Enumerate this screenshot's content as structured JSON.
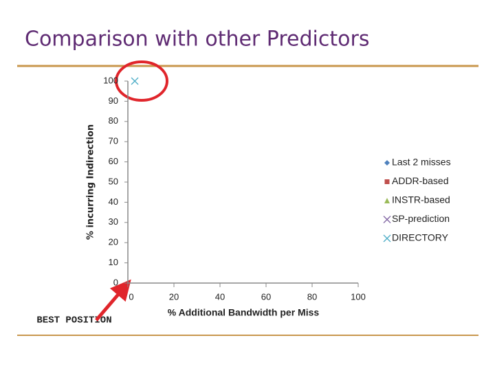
{
  "chart_data": {
    "type": "scatter",
    "title": "Comparison with other Predictors",
    "xlabel": "% Additional Bandwidth per Miss",
    "ylabel": "% incurring Indirection",
    "annotation": "BEST POSITION",
    "xlim": [
      0,
      100
    ],
    "xticks": [
      0,
      20,
      40,
      60,
      80,
      100
    ],
    "ylim": [
      0,
      100
    ],
    "yticks": [
      0,
      10,
      20,
      30,
      40,
      50,
      60,
      70,
      80,
      90,
      100
    ],
    "series": [
      {
        "name": "Last 2 misses",
        "color": "#4f81bd",
        "marker": "diamond",
        "x": [],
        "values": []
      },
      {
        "name": "ADDR-based",
        "color": "#c0504d",
        "marker": "square",
        "x": [],
        "values": []
      },
      {
        "name": "INSTR-based",
        "color": "#9bbb59",
        "marker": "triangle",
        "x": [],
        "values": []
      },
      {
        "name": "SP-prediction",
        "color": "#8064a2",
        "marker": "x",
        "x": [],
        "values": []
      },
      {
        "name": "DIRECTORY",
        "color": "#4bacc6",
        "marker": "x",
        "x": [
          3
        ],
        "values": [
          100
        ]
      }
    ]
  }
}
